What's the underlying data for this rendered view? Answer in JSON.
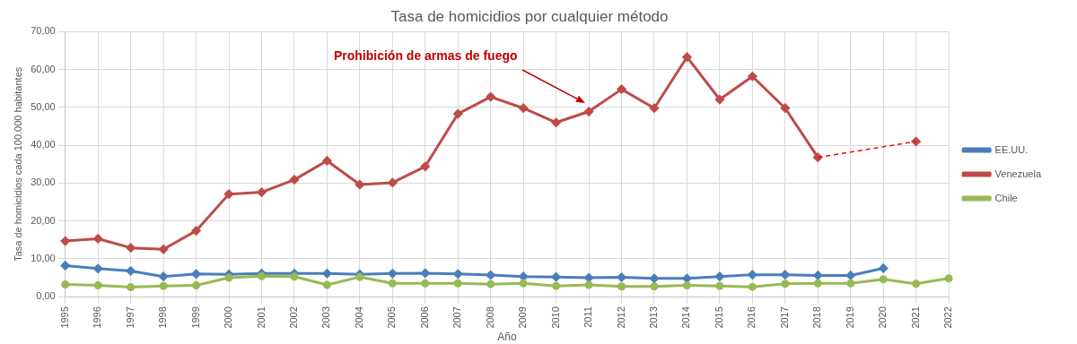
{
  "chart_data": {
    "type": "line",
    "title": "Tasa de homicidios por cualquier método",
    "xlabel": "Año",
    "ylabel": "Tasa de homicidios cada 100.000 habitantes",
    "categories": [
      "1995",
      "1996",
      "1997",
      "1998",
      "1999",
      "2000",
      "2001",
      "2002",
      "2003",
      "2004",
      "2005",
      "2006",
      "2007",
      "2008",
      "2009",
      "2010",
      "2011",
      "2012",
      "2013",
      "2014",
      "2015",
      "2016",
      "2017",
      "2018",
      "2019",
      "2020",
      "2021",
      "2022"
    ],
    "series": [
      {
        "name": "EE.UU.",
        "color": "#4a7ebb",
        "marker": "diamond",
        "values": [
          8.2,
          7.4,
          6.8,
          5.3,
          6.0,
          5.9,
          6.1,
          6.1,
          6.1,
          5.9,
          6.1,
          6.2,
          6.0,
          5.7,
          5.3,
          5.2,
          5.0,
          5.1,
          4.8,
          4.8,
          5.3,
          5.8,
          5.8,
          5.6,
          5.6,
          7.5,
          null,
          null
        ]
      },
      {
        "name": "Venezuela",
        "color": "#be4b48",
        "marker": "diamond",
        "values": [
          14.7,
          15.3,
          12.9,
          12.5,
          17.4,
          27.1,
          27.6,
          30.9,
          35.9,
          29.6,
          30.1,
          34.4,
          48.3,
          52.8,
          49.8,
          46.0,
          48.9,
          54.8,
          49.8,
          63.3,
          52.1,
          58.2,
          49.8,
          36.8,
          null,
          null,
          41.0,
          null
        ]
      },
      {
        "name": "Chile",
        "color": "#98b954",
        "marker": "circle",
        "values": [
          3.2,
          3.0,
          2.5,
          2.8,
          3.0,
          5.0,
          5.4,
          5.3,
          3.1,
          5.2,
          3.5,
          3.5,
          3.5,
          3.3,
          3.5,
          2.8,
          3.1,
          2.7,
          2.7,
          3.0,
          2.8,
          2.6,
          3.4,
          3.5,
          3.5,
          4.6,
          3.4,
          4.8
        ]
      },
      {
        "color": "#ff0000",
        "marker": "none",
        "line_style": "dashed",
        "values": [
          null,
          null,
          null,
          null,
          null,
          null,
          null,
          null,
          null,
          null,
          null,
          null,
          null,
          null,
          null,
          null,
          null,
          null,
          null,
          null,
          null,
          null,
          null,
          36.8,
          null,
          null,
          41.0,
          null
        ]
      }
    ],
    "ylim": [
      0,
      70
    ],
    "yticks": [
      {
        "value": 0,
        "label": "0,00"
      },
      {
        "value": 10,
        "label": "10,00"
      },
      {
        "value": 20,
        "label": "20,00"
      },
      {
        "value": 30,
        "label": "30,00"
      },
      {
        "value": 40,
        "label": "40,00"
      },
      {
        "value": 50,
        "label": "50,00"
      },
      {
        "value": 60,
        "label": "60,00"
      },
      {
        "value": 70,
        "label": "70,00"
      }
    ],
    "grid": true,
    "legend": "right",
    "annotations": [
      "Prohibición de armas de fuego"
    ]
  }
}
